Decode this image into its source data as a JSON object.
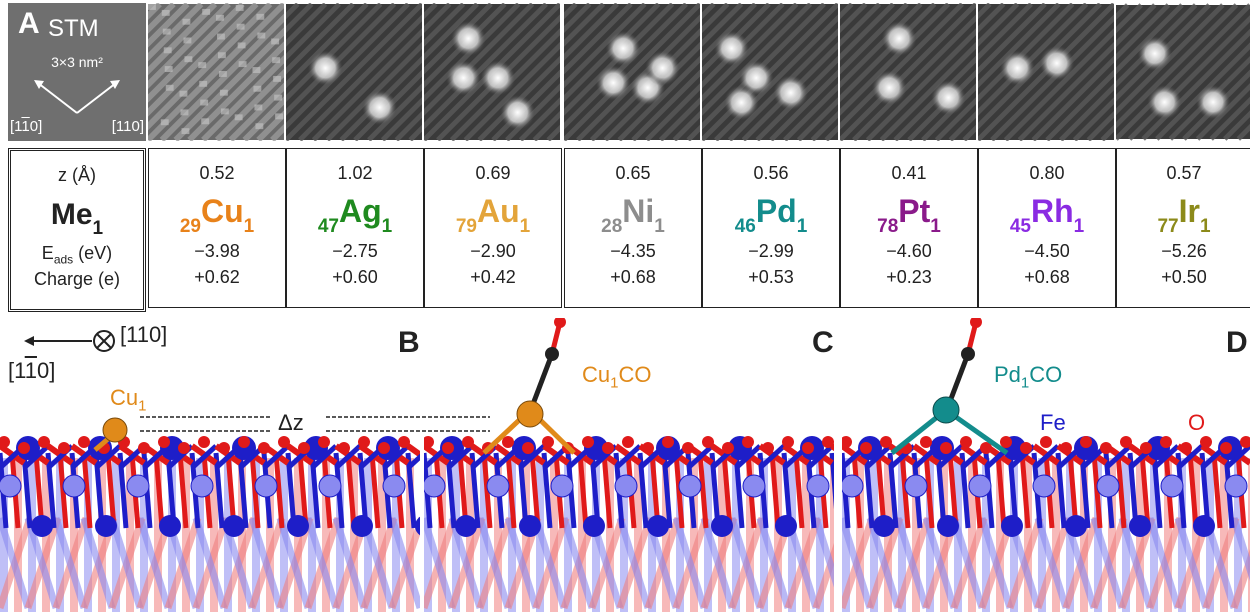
{
  "stm": {
    "letter": "A",
    "word": "STM",
    "scale_text": "3×3 nm²",
    "dir_left": "[1̄10]",
    "dir_left_plain": "110",
    "dir_right": "[110]"
  },
  "table": {
    "header": {
      "z": "z (Å)",
      "me": "Me",
      "me_sub": "1",
      "e": "E",
      "e_sub": "ads",
      "e_unit": " (eV)",
      "c": "Charge (e)"
    },
    "rows": [
      {
        "z": "0.52",
        "pre": "29",
        "sym": "Cu",
        "post": "1",
        "e": "−3.98",
        "c": "+0.62",
        "color": "#E8821A"
      },
      {
        "z": "1.02",
        "pre": "47",
        "sym": "Ag",
        "post": "1",
        "e": "−2.75",
        "c": "+0.60",
        "color": "#1F8A1F"
      },
      {
        "z": "0.69",
        "pre": "79",
        "sym": "Au",
        "post": "1",
        "e": "−2.90",
        "c": "+0.42",
        "color": "#E3A43A"
      },
      {
        "z": "0.65",
        "pre": "28",
        "sym": "Ni",
        "post": "1",
        "e": "−4.35",
        "c": "+0.68",
        "color": "#8D8D8D"
      },
      {
        "z": "0.56",
        "pre": "46",
        "sym": "Pd",
        "post": "1",
        "e": "−2.99",
        "c": "+0.53",
        "color": "#138C8C"
      },
      {
        "z": "0.41",
        "pre": "78",
        "sym": "Pt",
        "post": "1",
        "e": "−4.60",
        "c": "+0.23",
        "color": "#8A1A8A"
      },
      {
        "z": "0.80",
        "pre": "45",
        "sym": "Rh",
        "post": "1",
        "e": "−4.50",
        "c": "+0.68",
        "color": "#8A2BE2"
      },
      {
        "z": "0.57",
        "pre": "77",
        "sym": "Ir",
        "post": "1",
        "e": "−5.26",
        "c": "+0.50",
        "color": "#8C8A1A"
      }
    ]
  },
  "panels": {
    "b": {
      "letter": "B",
      "axis_top": "[110]",
      "axis_bottom": "[1̄10]",
      "atom_label": "Cu",
      "atom_sub": "1",
      "dz": "Δz"
    },
    "c": {
      "letter": "C",
      "label": "Cu",
      "label_sub": "1",
      "label_tail": "CO"
    },
    "d": {
      "letter": "D",
      "label": "Pd",
      "label_sub": "1",
      "label_tail": "CO",
      "fe": "Fe",
      "o": "O"
    }
  },
  "colors": {
    "fe_dark": "#1E1EC8",
    "fe_light": "#8A8AF0",
    "o_red": "#E01A1A",
    "o_light": "#F08080",
    "cu": "#E08A1A",
    "pd": "#138C8C",
    "c_black": "#222222",
    "stm_label_bg": "#6f6f6f"
  }
}
